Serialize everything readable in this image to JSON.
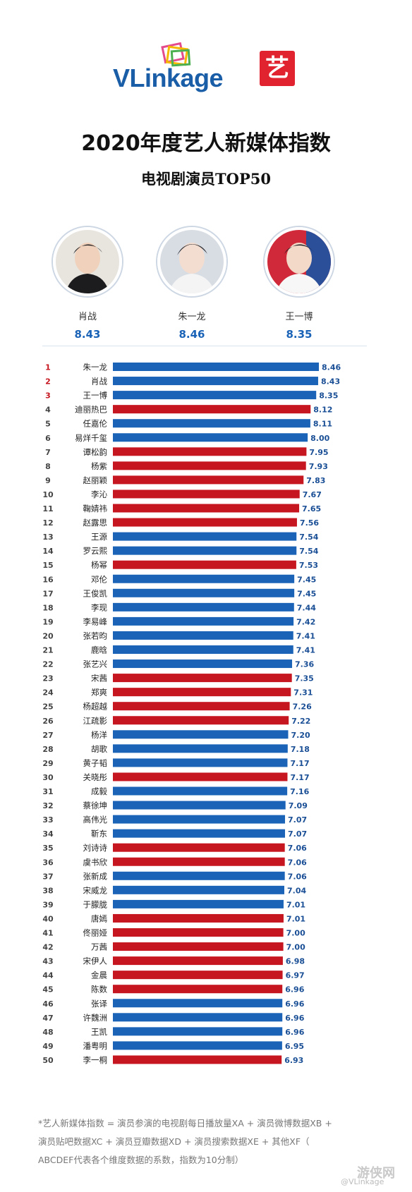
{
  "header": {
    "logo_text": "VLinkage",
    "badge": "艺",
    "title": "2020年度艺人新媒体指数",
    "subtitle": "电视剧演员TOP50"
  },
  "top3": [
    {
      "name": "肖战",
      "score": "8.43"
    },
    {
      "name": "朱一龙",
      "score": "8.46"
    },
    {
      "name": "王一博",
      "score": "8.35"
    }
  ],
  "colors": {
    "blue": "#1a63b7",
    "red": "#c6161f",
    "rank_red": "#c6161f",
    "rank_gray": "#444444"
  },
  "chart_data": {
    "type": "bar",
    "orientation": "horizontal",
    "title": "2020年度艺人新媒体指数",
    "subtitle": "电视剧演员TOP50",
    "xlim": [
      0,
      8.5
    ],
    "grid": false,
    "ranks": [
      1,
      2,
      3,
      4,
      5,
      6,
      7,
      8,
      9,
      10,
      11,
      12,
      13,
      14,
      15,
      16,
      17,
      18,
      19,
      20,
      21,
      22,
      23,
      24,
      25,
      26,
      27,
      28,
      29,
      30,
      31,
      32,
      33,
      34,
      35,
      36,
      37,
      38,
      39,
      40,
      41,
      42,
      43,
      44,
      45,
      46,
      47,
      48,
      49,
      50
    ],
    "categories": [
      "朱一龙",
      "肖战",
      "王一博",
      "迪丽热巴",
      "任嘉伦",
      "易烊千玺",
      "谭松韵",
      "杨紫",
      "赵丽颖",
      "李沁",
      "鞠婧祎",
      "赵露思",
      "王源",
      "罗云熙",
      "杨幂",
      "邓伦",
      "王俊凯",
      "李现",
      "李易峰",
      "张若昀",
      "鹿晗",
      "张艺兴",
      "宋茜",
      "郑爽",
      "杨超越",
      "江疏影",
      "杨洋",
      "胡歌",
      "黄子韬",
      "关晓彤",
      "成毅",
      "蔡徐坤",
      "高伟光",
      "靳东",
      "刘诗诗",
      "虞书欣",
      "张新成",
      "宋威龙",
      "于朦胧",
      "唐嫣",
      "佟丽娅",
      "万茜",
      "宋伊人",
      "金晨",
      "陈数",
      "张译",
      "许魏洲",
      "王凯",
      "潘粤明",
      "李一桐"
    ],
    "values": [
      8.46,
      8.43,
      8.35,
      8.12,
      8.11,
      8.0,
      7.95,
      7.93,
      7.83,
      7.67,
      7.65,
      7.56,
      7.54,
      7.54,
      7.53,
      7.45,
      7.45,
      7.44,
      7.42,
      7.41,
      7.41,
      7.36,
      7.35,
      7.31,
      7.26,
      7.22,
      7.2,
      7.18,
      7.17,
      7.17,
      7.16,
      7.09,
      7.07,
      7.07,
      7.06,
      7.06,
      7.06,
      7.04,
      7.01,
      7.01,
      7.0,
      7.0,
      6.98,
      6.97,
      6.96,
      6.96,
      6.96,
      6.96,
      6.95,
      6.93
    ],
    "labels": [
      "8.46",
      "8.43",
      "8.35",
      "8.12",
      "8.11",
      "8.00",
      "7.95",
      "7.93",
      "7.83",
      "7.67",
      "7.65",
      "7.56",
      "7.54",
      "7.54",
      "7.53",
      "7.45",
      "7.45",
      "7.44",
      "7.42",
      "7.41",
      "7.41",
      "7.36",
      "7.35",
      "7.31",
      "7.26",
      "7.22",
      "7.20",
      "7.18",
      "7.17",
      "7.17",
      "7.16",
      "7.09",
      "7.07",
      "7.07",
      "7.06",
      "7.06",
      "7.06",
      "7.04",
      "7.01",
      "7.01",
      "7.00",
      "7.00",
      "6.98",
      "6.97",
      "6.96",
      "6.96",
      "6.96",
      "6.96",
      "6.95",
      "6.93"
    ],
    "bar_colors": [
      "blue",
      "blue",
      "blue",
      "red",
      "blue",
      "blue",
      "red",
      "red",
      "red",
      "red",
      "red",
      "red",
      "blue",
      "blue",
      "red",
      "blue",
      "blue",
      "blue",
      "blue",
      "blue",
      "blue",
      "blue",
      "red",
      "red",
      "red",
      "red",
      "blue",
      "blue",
      "blue",
      "red",
      "blue",
      "blue",
      "blue",
      "blue",
      "red",
      "red",
      "blue",
      "blue",
      "blue",
      "red",
      "red",
      "red",
      "red",
      "red",
      "red",
      "blue",
      "blue",
      "blue",
      "blue",
      "red"
    ]
  },
  "footnote": {
    "lines": [
      "*艺人新媒体指数 = 演员参演的电视剧每日播放量XA + 演员微博数据XB +",
      "演员贴吧数据XC + 演员豆瓣数据XD + 演员搜索数据XE + 其他XF（",
      "ABCDEF代表各个维度数据的系数，指数为10分制）"
    ]
  },
  "watermark": {
    "main": "游侠网",
    "sub": "@VLinkage"
  }
}
